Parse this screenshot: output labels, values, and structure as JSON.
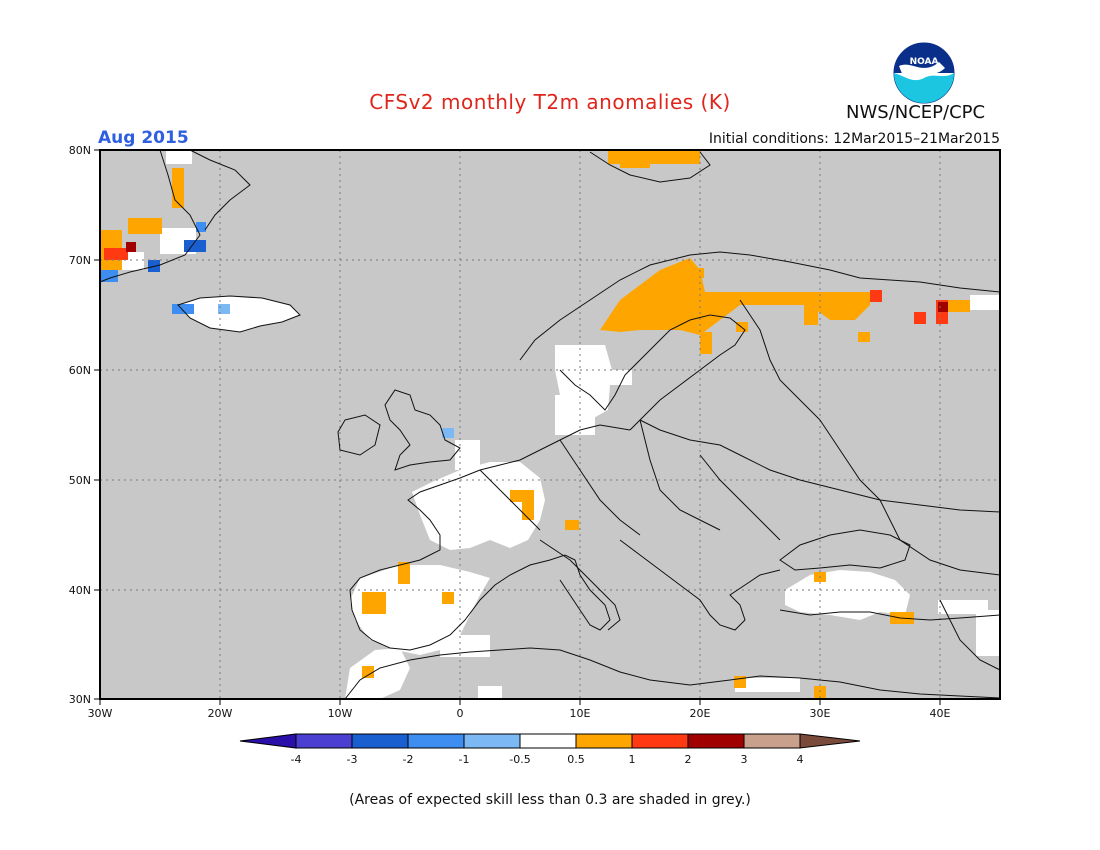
{
  "header": {
    "title": "CFSv2 monthly T2m anomalies (K)",
    "month": "Aug 2015",
    "initial_conditions": "Initial conditions: 12Mar2015–21Mar2015",
    "agency": "NWS/NCEP/CPC",
    "logo_text": "NOAA"
  },
  "footnote": "(Areas of expected skill less than 0.3 are shaded in grey.)",
  "map": {
    "lon_range": [
      -30,
      45
    ],
    "lat_range": [
      30,
      80
    ],
    "lon_ticks": [
      "30W",
      "20W",
      "10W",
      "0",
      "10E",
      "20E",
      "30E",
      "40E"
    ],
    "lat_ticks": [
      "30N",
      "40N",
      "50N",
      "60N",
      "70N",
      "80N"
    ],
    "background_color": "#c8c8c8",
    "grid": "dotted"
  },
  "legend": {
    "labels": [
      "-4",
      "-3",
      "-2",
      "-1",
      "-0.5",
      "0.5",
      "1",
      "2",
      "3",
      "4"
    ],
    "colors": [
      "#2a0fa8",
      "#4b3fd1",
      "#1a5fd0",
      "#3d8ef0",
      "#7cb8f4",
      "#ffffff",
      "#ffa500",
      "#ff3a12",
      "#a00000",
      "#c8a08c",
      "#7a4a3a"
    ]
  }
}
